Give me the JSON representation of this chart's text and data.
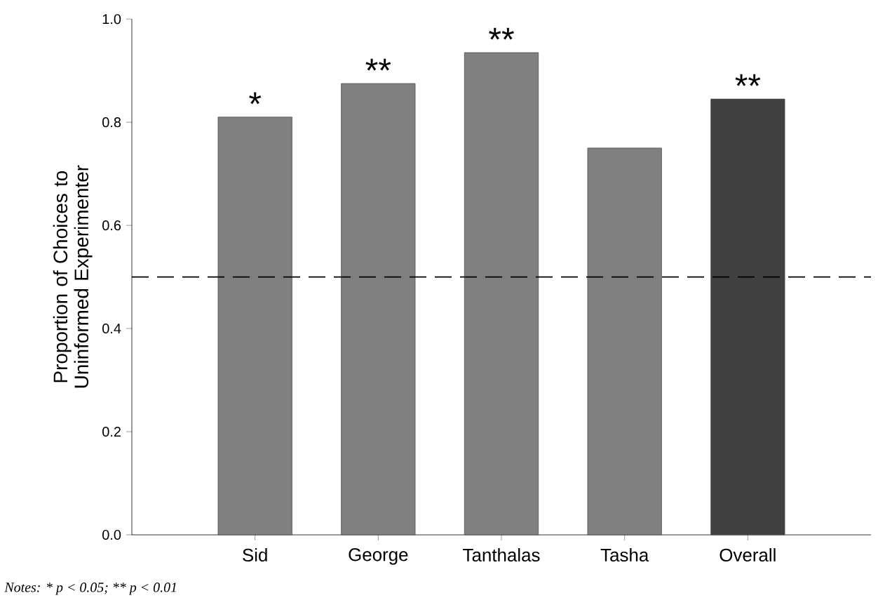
{
  "chart_data": {
    "type": "bar",
    "ylabel": "Proportion of Choices to Uninformed Experimenter",
    "categories": [
      "Sid",
      "George",
      "Tanthalas",
      "Tasha",
      "Overall"
    ],
    "values": [
      0.81,
      0.875,
      0.935,
      0.75,
      0.845
    ],
    "colors": [
      "#808080",
      "#808080",
      "#808080",
      "#808080",
      "#404040"
    ],
    "ylim": [
      0,
      1.0
    ],
    "yticks": [
      {
        "value": 0,
        "label": "0.0"
      },
      {
        "value": 0.2,
        "label": "0.2"
      },
      {
        "value": 0.4,
        "label": "0.4"
      },
      {
        "value": 0.6,
        "label": "0.6"
      },
      {
        "value": 0.8,
        "label": "0.8"
      },
      {
        "value": 1.0,
        "label": "1.0"
      }
    ],
    "ref_lines": [
      {
        "axis": "y",
        "value": 0.5,
        "line_style": "dashed",
        "color": "#000000"
      }
    ],
    "annotations": [
      {
        "text": "*",
        "x": "Sid",
        "y": 0.81
      },
      {
        "text": "**",
        "x": "George",
        "y": 0.875
      },
      {
        "text": "**",
        "x": "Tanthalas",
        "y": 0.935
      },
      {
        "text": "**",
        "x": "Overall",
        "y": 0.845
      },
      "Notes: * p < 0.05; ** p < 0.01"
    ]
  }
}
